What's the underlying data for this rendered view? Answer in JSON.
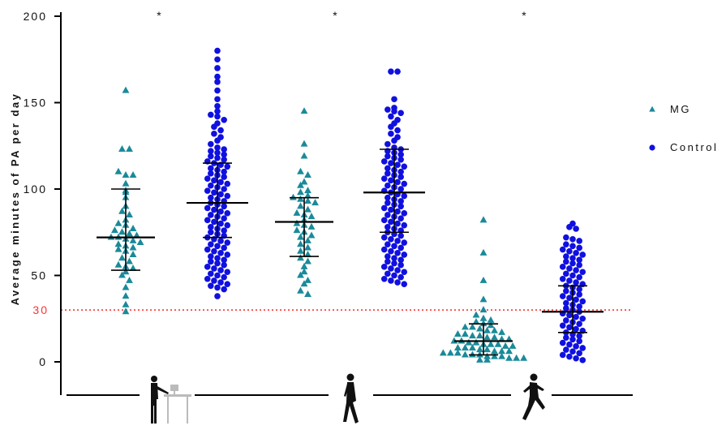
{
  "chart_data": {
    "type": "scatter",
    "ylabel": "Average minutes of PA per day",
    "ylim": [
      -18,
      202
    ],
    "yticks": [
      {
        "value": 0,
        "label": "0"
      },
      {
        "value": 50,
        "label": "50"
      },
      {
        "value": 100,
        "label": "100"
      },
      {
        "value": 150,
        "label": "150"
      },
      {
        "value": 200,
        "label": "200"
      }
    ],
    "reference_line": {
      "value": 30,
      "label": "30",
      "color": "#ff3333"
    },
    "significance_marks": [
      "*",
      "*",
      "*"
    ],
    "categories": [
      "sedentary-icon",
      "walking-icon",
      "running-icon"
    ],
    "legend": {
      "placement": "right",
      "entries": [
        {
          "name": "MG",
          "marker": "triangle",
          "color": "#1a8a99"
        },
        {
          "name": "Control",
          "marker": "circle",
          "color": "#1010e0"
        }
      ]
    },
    "series": [
      {
        "name": "MG",
        "marker": "triangle",
        "color": "#1a8a99",
        "groups": [
          {
            "category": "sedentary",
            "median": 72,
            "q1": 53,
            "q3": 100,
            "values": [
              157,
              123,
              123,
              110,
              108,
              108,
              103,
              99,
              98,
              95,
              90,
              87,
              85,
              82,
              80,
              79,
              77,
              76,
              75,
              74,
              73,
              72,
              72,
              71,
              70,
              69,
              68,
              67,
              66,
              65,
              64,
              62,
              60,
              58,
              56,
              55,
              54,
              52,
              50,
              47,
              43,
              38,
              33,
              29
            ]
          },
          {
            "category": "walking",
            "median": 81,
            "q1": 61,
            "q3": 95,
            "values": [
              145,
              126,
              119,
              110,
              108,
              104,
              102,
              99,
              98,
              96,
              95,
              94,
              93,
              92,
              90,
              88,
              86,
              85,
              84,
              82,
              80,
              79,
              78,
              76,
              75,
              73,
              72,
              70,
              68,
              66,
              64,
              62,
              60,
              58,
              55,
              52,
              50,
              47,
              45,
              41,
              39
            ]
          },
          {
            "category": "running",
            "median": 12,
            "q1": 4,
            "q3": 22,
            "values": [
              82,
              63,
              47,
              36,
              30,
              27,
              25,
              24,
              23,
              22,
              21,
              20,
              20,
              19,
              18,
              18,
              17,
              16,
              16,
              15,
              15,
              14,
              14,
              13,
              13,
              12,
              12,
              11,
              11,
              10,
              10,
              10,
              9,
              9,
              8,
              8,
              8,
              7,
              7,
              6,
              6,
              6,
              5,
              5,
              5,
              4,
              4,
              4,
              3,
              3,
              3,
              2,
              2,
              2,
              1,
              1
            ]
          }
        ]
      },
      {
        "name": "Control",
        "marker": "circle",
        "color": "#1010e0",
        "groups": [
          {
            "category": "sedentary",
            "median": 92,
            "q1": 72,
            "q3": 115,
            "values": [
              180,
              175,
              170,
              165,
              162,
              157,
              152,
              148,
              145,
              143,
              142,
              140,
              138,
              136,
              134,
              132,
              130,
              128,
              126,
              124,
              123,
              122,
              121,
              120,
              119,
              118,
              117,
              116,
              115,
              114,
              113,
              112,
              111,
              110,
              109,
              108,
              107,
              106,
              105,
              104,
              103,
              102,
              101,
              100,
              99,
              98,
              97,
              96,
              95,
              94,
              93,
              92,
              91,
              90,
              89,
              88,
              87,
              86,
              85,
              84,
              83,
              82,
              81,
              80,
              79,
              78,
              77,
              76,
              75,
              74,
              73,
              72,
              71,
              70,
              69,
              68,
              67,
              66,
              65,
              64,
              63,
              62,
              61,
              60,
              59,
              58,
              57,
              56,
              55,
              54,
              53,
              52,
              51,
              50,
              49,
              48,
              47,
              46,
              45,
              44,
              43,
              42,
              38
            ]
          },
          {
            "category": "walking",
            "median": 98,
            "q1": 75,
            "q3": 123,
            "values": [
              168,
              168,
              152,
              147,
              146,
              145,
              144,
              142,
              140,
              138,
              136,
              134,
              132,
              130,
              128,
              126,
              124,
              123,
              122,
              121,
              120,
              119,
              118,
              117,
              116,
              115,
              114,
              113,
              112,
              111,
              110,
              109,
              108,
              107,
              106,
              105,
              104,
              103,
              102,
              101,
              100,
              99,
              98,
              97,
              96,
              95,
              94,
              93,
              92,
              91,
              90,
              89,
              88,
              87,
              86,
              85,
              84,
              83,
              82,
              81,
              80,
              79,
              78,
              77,
              76,
              75,
              74,
              73,
              72,
              71,
              70,
              69,
              68,
              67,
              66,
              65,
              64,
              63,
              62,
              61,
              60,
              59,
              58,
              57,
              56,
              55,
              54,
              53,
              52,
              51,
              50,
              49,
              48,
              47,
              46,
              45
            ]
          },
          {
            "category": "running",
            "median": 29,
            "q1": 17,
            "q3": 44,
            "values": [
              80,
              78,
              77,
              72,
              71,
              70,
              68,
              67,
              66,
              65,
              64,
              63,
              62,
              61,
              60,
              59,
              58,
              57,
              56,
              55,
              54,
              53,
              52,
              51,
              50,
              49,
              48,
              47,
              46,
              45,
              44,
              43,
              42,
              41,
              40,
              39,
              38,
              37,
              36,
              35,
              34,
              33,
              32,
              31,
              30,
              29,
              28,
              27,
              26,
              25,
              24,
              23,
              22,
              21,
              20,
              19,
              18,
              17,
              16,
              15,
              14,
              13,
              12,
              11,
              10,
              9,
              8,
              7,
              6,
              5,
              4,
              3,
              2,
              1
            ]
          }
        ]
      }
    ]
  }
}
